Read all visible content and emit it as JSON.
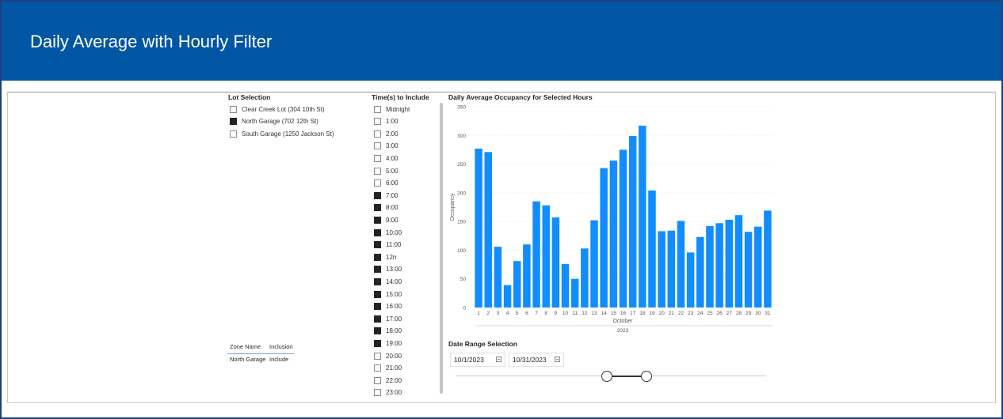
{
  "header": {
    "title": "Daily Average with Hourly Filter"
  },
  "lot_slicer": {
    "title": "Lot Selection",
    "options": [
      {
        "label": "Clear Creek Lot (304 10th St)",
        "checked": false
      },
      {
        "label": "North Garage (702 12th St)",
        "checked": true
      },
      {
        "label": "South Garage (1250 Jackson St)",
        "checked": false
      }
    ]
  },
  "time_slicer": {
    "title": "Time(s) to Include",
    "options": [
      {
        "label": "Midnight",
        "checked": false
      },
      {
        "label": "1:00",
        "checked": false
      },
      {
        "label": "2:00",
        "checked": false
      },
      {
        "label": "3:00",
        "checked": false
      },
      {
        "label": "4:00",
        "checked": false
      },
      {
        "label": "5:00",
        "checked": false
      },
      {
        "label": "6:00",
        "checked": false
      },
      {
        "label": "7:00",
        "checked": true
      },
      {
        "label": "8:00",
        "checked": true
      },
      {
        "label": "9:00",
        "checked": true
      },
      {
        "label": "10:00",
        "checked": true
      },
      {
        "label": "11:00",
        "checked": true
      },
      {
        "label": "12n",
        "checked": true
      },
      {
        "label": "13:00",
        "checked": true
      },
      {
        "label": "14:00",
        "checked": true
      },
      {
        "label": "15:00",
        "checked": true
      },
      {
        "label": "16:00",
        "checked": true
      },
      {
        "label": "17:00",
        "checked": true
      },
      {
        "label": "18:00",
        "checked": true
      },
      {
        "label": "19:00",
        "checked": true
      },
      {
        "label": "20:00",
        "checked": false
      },
      {
        "label": "21:00",
        "checked": false
      },
      {
        "label": "22:00",
        "checked": false
      },
      {
        "label": "23:00",
        "checked": false
      }
    ]
  },
  "zone_table": {
    "headers": [
      "Zone Name",
      "Inclusion"
    ],
    "rows": [
      [
        "North Garage",
        "Include"
      ]
    ]
  },
  "date_range": {
    "title": "Date Range Selection",
    "start": "10/1/2023",
    "end": "10/31/2023"
  },
  "colors": {
    "header_bg": "#0056a3",
    "bar": "#118dff"
  },
  "chart_data": {
    "type": "bar",
    "title": "Daily Average Occupancy for Selected Hours",
    "ylabel": "Occupancy",
    "xlabel_month": "October",
    "xlabel_year": "2023",
    "ylim": [
      0,
      350
    ],
    "yticks": [
      0,
      50,
      100,
      150,
      200,
      250,
      300,
      350
    ],
    "grid": true,
    "categories": [
      "1",
      "2",
      "3",
      "4",
      "5",
      "6",
      "7",
      "8",
      "9",
      "10",
      "11",
      "12",
      "13",
      "14",
      "15",
      "16",
      "17",
      "18",
      "19",
      "20",
      "21",
      "22",
      "23",
      "24",
      "25",
      "26",
      "27",
      "28",
      "29",
      "30",
      "31"
    ],
    "values": [
      277,
      271,
      106,
      39,
      81,
      110,
      185,
      178,
      157,
      76,
      50,
      103,
      152,
      243,
      256,
      275,
      299,
      317,
      204,
      133,
      134,
      151,
      96,
      123,
      142,
      147,
      153,
      161,
      132,
      141,
      169
    ]
  }
}
